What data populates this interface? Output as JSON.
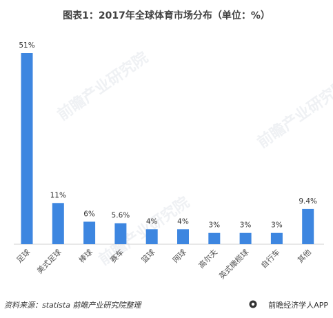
{
  "chart_data": {
    "type": "bar",
    "title": "图表1：2017年全球体育市场分布（单位：%）",
    "categories": [
      "足球",
      "美式足球",
      "棒球",
      "赛车",
      "篮球",
      "网球",
      "高尔夫",
      "英式橄榄球",
      "自行车",
      "其他"
    ],
    "values": [
      51,
      11,
      6,
      5.6,
      4,
      4,
      3,
      3,
      3,
      9.4
    ],
    "value_labels": [
      "51%",
      "11%",
      "6%",
      "5.6%",
      "4%",
      "4%",
      "3%",
      "3%",
      "3%",
      "9.4%"
    ],
    "ylim": [
      0,
      51
    ],
    "grid": false,
    "bar_color": "#3d86e0"
  },
  "footer": {
    "source": "资料来源：statista  前瞻产业研究院整理",
    "brand": "前瞻经济学人APP"
  },
  "watermark_text": "前瞻产业研究院"
}
